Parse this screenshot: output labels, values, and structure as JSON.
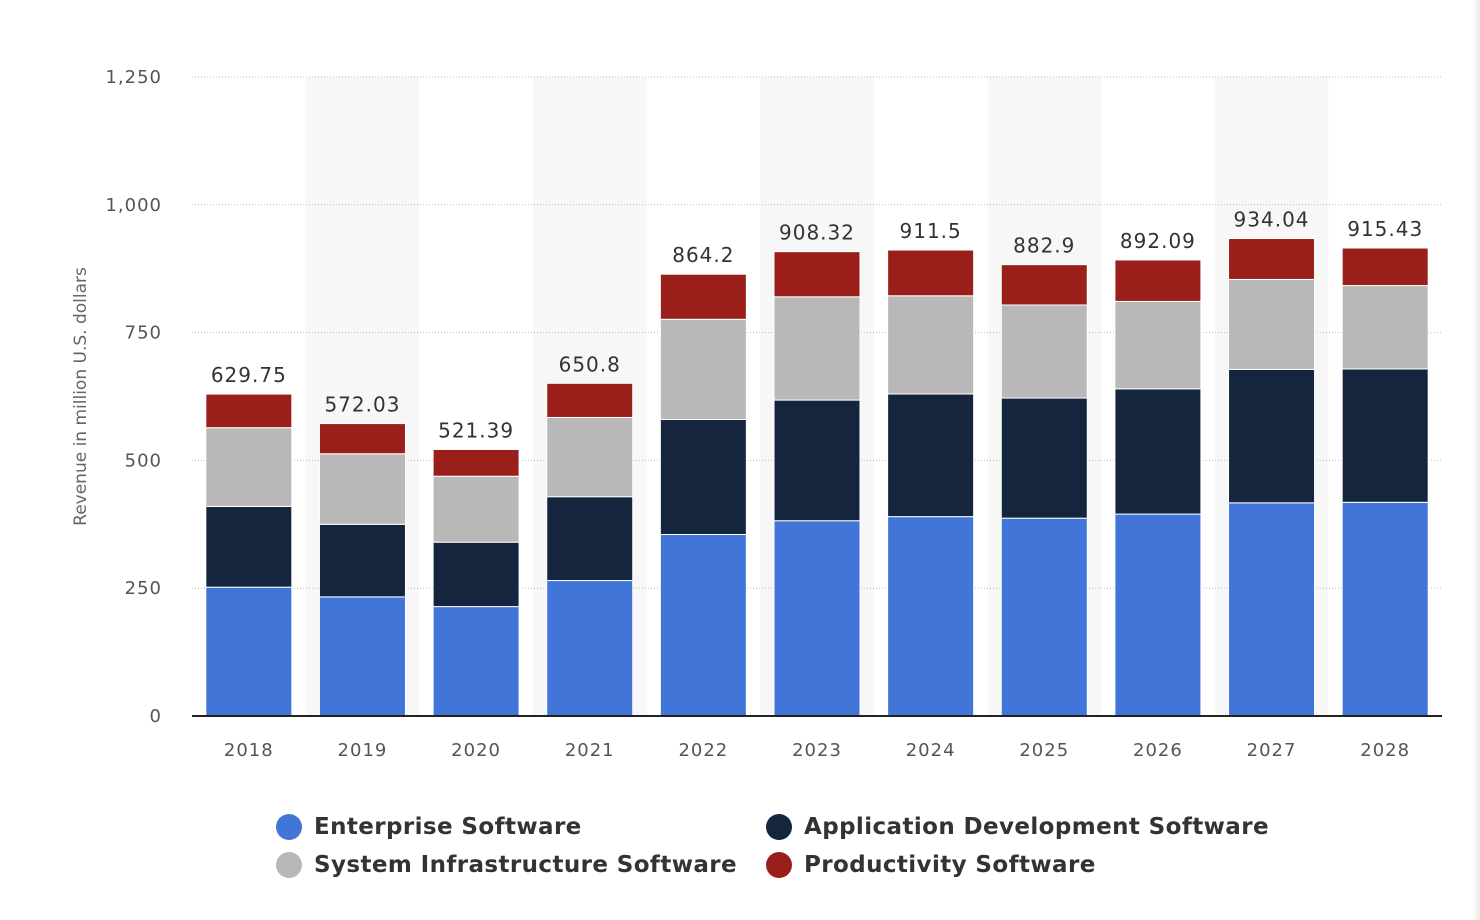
{
  "chart_data": {
    "type": "bar",
    "stacked": true,
    "categories": [
      "2018",
      "2019",
      "2020",
      "2021",
      "2022",
      "2023",
      "2024",
      "2025",
      "2026",
      "2027",
      "2028"
    ],
    "series": [
      {
        "name": "Enterprise Software",
        "color": "#4175d8",
        "values": [
          252,
          233,
          214,
          265,
          355,
          382,
          390,
          387,
          395,
          417,
          418
        ]
      },
      {
        "name": "Application Development Software",
        "color": "#14253d",
        "values": [
          158,
          142,
          126,
          164,
          225,
          236,
          240,
          235,
          245,
          261,
          261
        ]
      },
      {
        "name": "System Infrastructure Software",
        "color": "#b8b8b8",
        "values": [
          154,
          138,
          129,
          155,
          196,
          202,
          192,
          182,
          171,
          176,
          163
        ]
      },
      {
        "name": "Productivity Software",
        "color": "#9a1f1a",
        "values": [
          65.75,
          59.03,
          52.39,
          66.8,
          88.2,
          88.32,
          89.5,
          78.9,
          81.09,
          80.04,
          73.43
        ]
      }
    ],
    "totals": [
      "629.75",
      "572.03",
      "521.39",
      "650.8",
      "864.2",
      "908.32",
      "911.5",
      "882.9",
      "892.09",
      "934.04",
      "915.43"
    ],
    "yticks": [
      0,
      250,
      500,
      750,
      1000,
      1250
    ],
    "ytick_labels": [
      "0",
      "250",
      "500",
      "750",
      "1,000",
      "1,250"
    ],
    "ylim": [
      0,
      1250
    ],
    "ylabel": "Revenue in million U.S. dollars",
    "xlabel": "",
    "title": "",
    "grid": true,
    "legend_position": "bottom"
  }
}
